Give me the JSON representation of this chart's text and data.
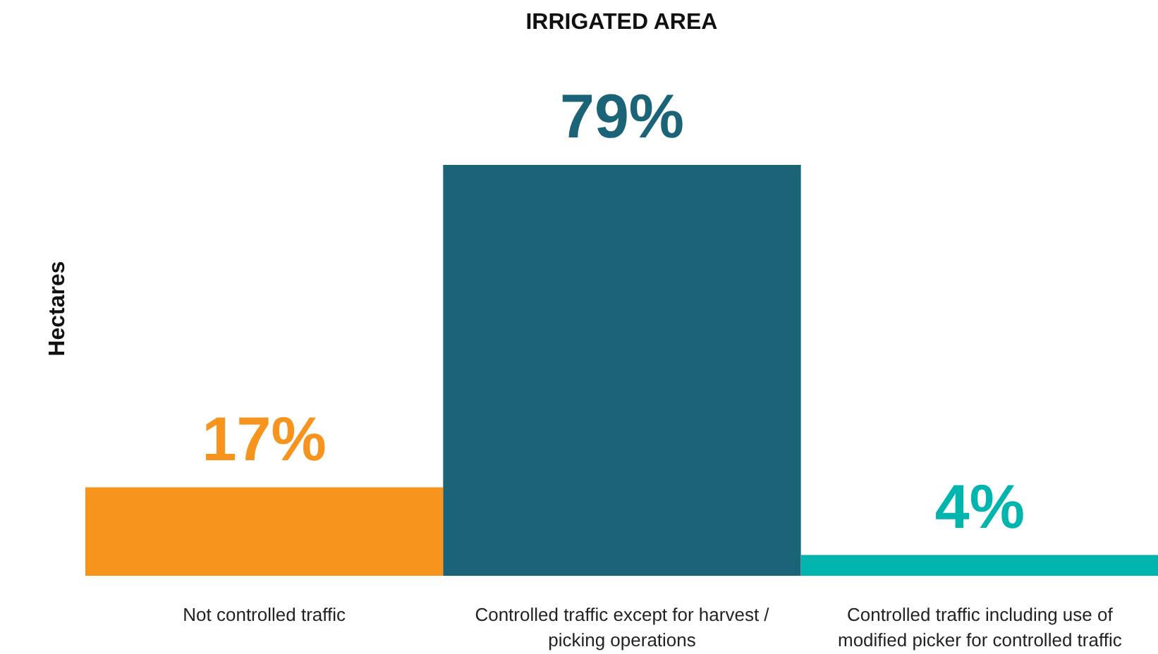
{
  "chart_data": {
    "type": "bar",
    "title": "IRRIGATED AREA",
    "ylabel": "Hectares",
    "categories": [
      "Not controlled traffic",
      "Controlled traffic except for harvest / picking operations",
      "Controlled traffic including use of modified picker for controlled traffic"
    ],
    "values": [
      17,
      79,
      4
    ],
    "colors": [
      "#f7941d",
      "#1b6478",
      "#00b5ad"
    ],
    "value_labels": [
      "17%",
      "79%",
      "4%"
    ],
    "grid": false
  }
}
